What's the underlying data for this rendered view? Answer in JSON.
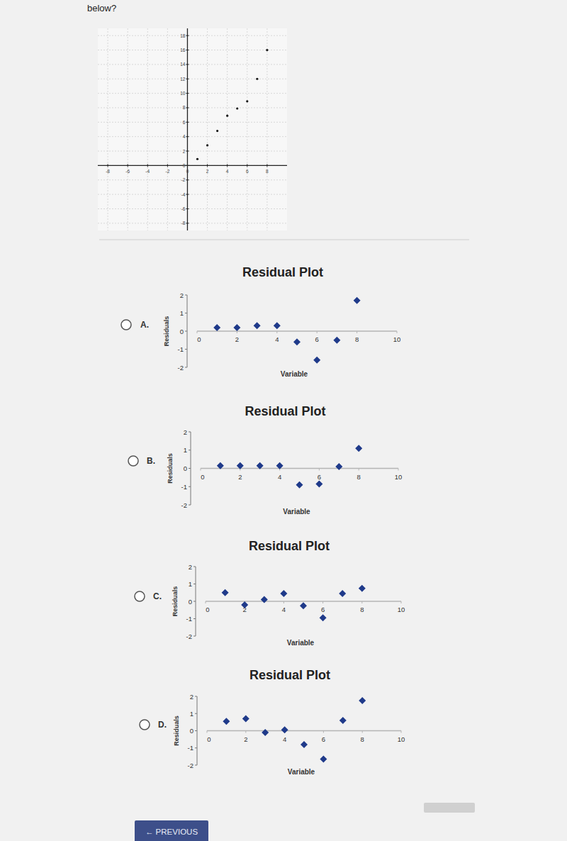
{
  "page": {
    "prompt": "below?",
    "options": [
      "A.",
      "B.",
      "C.",
      "D."
    ],
    "button": "← PREVIOUS"
  },
  "chart_data": [
    {
      "type": "scatter",
      "x": [
        1,
        2,
        3,
        4,
        5,
        6,
        7,
        8
      ],
      "values": [
        0.9,
        2.8,
        4.8,
        6.9,
        7.9,
        8.9,
        12,
        16
      ],
      "xlim": [
        -9,
        10
      ],
      "ylim": [
        -9,
        19
      ],
      "xticks": [
        -8,
        -6,
        -4,
        -2,
        0,
        2,
        4,
        6,
        8
      ],
      "yticks": [
        -8,
        -6,
        -4,
        -2,
        0,
        2,
        4,
        6,
        8,
        10,
        12,
        14,
        16,
        18
      ],
      "grid": true,
      "color": "#111111",
      "marker": "circle"
    },
    {
      "type": "scatter",
      "title": "Residual Plot",
      "xlabel": "Variable",
      "ylabel": "Residuals",
      "x": [
        1,
        2,
        3,
        4,
        5,
        6,
        7,
        8
      ],
      "values": [
        0.2,
        0.2,
        0.3,
        0.3,
        -0.6,
        -1.6,
        -0.5,
        1.7
      ],
      "xlim": [
        0,
        10
      ],
      "ylim": [
        -2,
        2
      ],
      "xticks": [
        0,
        2,
        4,
        6,
        8,
        10
      ],
      "yticks": [
        -2,
        -1,
        0,
        1,
        2
      ],
      "grid": false,
      "color": "#1f3a8a",
      "marker": "diamond"
    },
    {
      "type": "scatter",
      "title": "Residual Plot",
      "xlabel": "Variable",
      "ylabel": "Residuals",
      "x": [
        1,
        2,
        3,
        4,
        5,
        6,
        7,
        8
      ],
      "values": [
        0.15,
        0.15,
        0.15,
        0.15,
        -0.9,
        -0.85,
        0.1,
        1.1
      ],
      "xlim": [
        0,
        10
      ],
      "ylim": [
        -2,
        2
      ],
      "xticks": [
        0,
        2,
        4,
        6,
        8,
        10
      ],
      "yticks": [
        -2,
        -1,
        0,
        1,
        2
      ],
      "grid": false,
      "color": "#1f3a8a",
      "marker": "diamond"
    },
    {
      "type": "scatter",
      "title": "Residual Plot",
      "xlabel": "Variable",
      "ylabel": "Residuals",
      "x": [
        1,
        2,
        3,
        4,
        5,
        6,
        7,
        8
      ],
      "values": [
        0.5,
        -0.2,
        0.1,
        0.45,
        -0.25,
        -0.95,
        0.45,
        0.75
      ],
      "xlim": [
        0,
        10
      ],
      "ylim": [
        -2,
        2
      ],
      "xticks": [
        0,
        2,
        4,
        6,
        8,
        10
      ],
      "yticks": [
        -2,
        -1,
        0,
        1,
        2
      ],
      "grid": false,
      "color": "#1f3a8a",
      "marker": "diamond"
    },
    {
      "type": "scatter",
      "title": "Residual Plot",
      "xlabel": "Variable",
      "ylabel": "Residuals",
      "x": [
        1,
        2,
        3,
        4,
        5,
        6,
        7,
        8
      ],
      "values": [
        0.55,
        0.7,
        -0.1,
        0.05,
        -0.8,
        -1.65,
        0.6,
        1.75
      ],
      "xlim": [
        0,
        10
      ],
      "ylim": [
        -2,
        2
      ],
      "xticks": [
        0,
        2,
        4,
        6,
        8,
        10
      ],
      "yticks": [
        -2,
        -1,
        0,
        1,
        2
      ],
      "grid": false,
      "color": "#1f3a8a",
      "marker": "diamond"
    }
  ]
}
